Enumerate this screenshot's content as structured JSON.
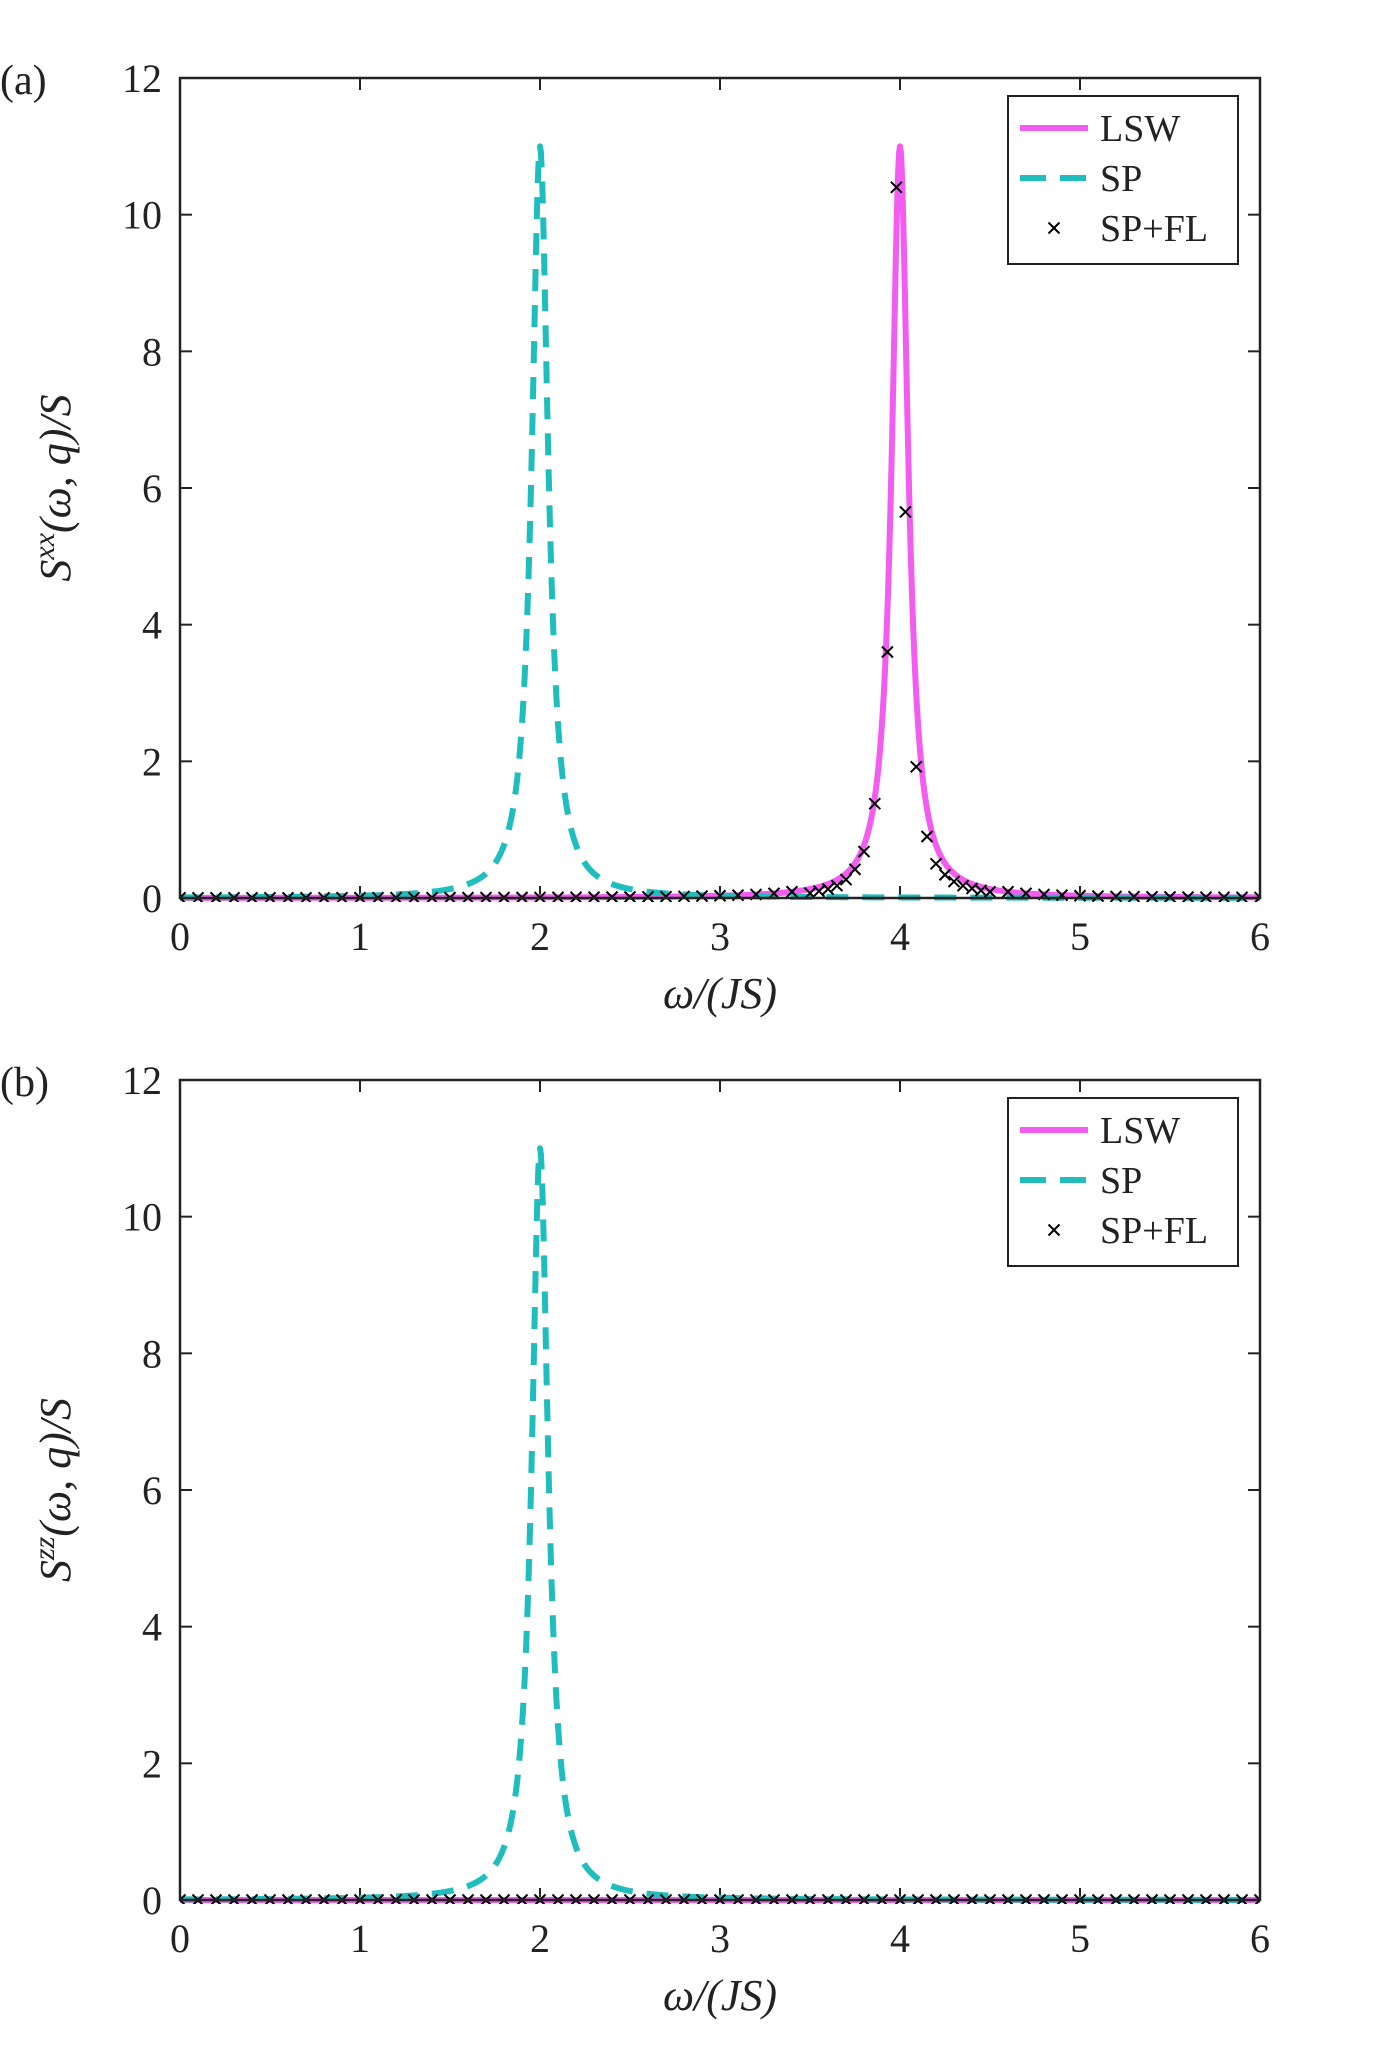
{
  "chart_data": [
    {
      "type": "line",
      "panel_label": "(a)",
      "xlabel": "ω/(JS)",
      "ylabel": "S^xx(ω, q)/S",
      "ylabel_main": "S",
      "ylabel_sup": "xx",
      "ylabel_rest": "(ω, q)/S",
      "xlim": [
        0,
        6
      ],
      "ylim": [
        0,
        12
      ],
      "xticks": [
        0,
        1,
        2,
        3,
        4,
        5,
        6
      ],
      "yticks": [
        0,
        2,
        4,
        6,
        8,
        10,
        12
      ],
      "legend": {
        "position": "top-right",
        "entries": [
          "LSW",
          "SP",
          "SP+FL"
        ]
      },
      "series": [
        {
          "name": "LSW",
          "style": "solid",
          "color": "#f25cf0",
          "center": 4.0,
          "peak": 11.0,
          "gamma": 0.055
        },
        {
          "name": "SP",
          "style": "dashed",
          "color": "#1fbdbd",
          "center": 2.0,
          "peak": 11.0,
          "gamma": 0.055
        },
        {
          "name": "SP+FL",
          "style": "markers",
          "color": "#000000",
          "center": 4.0,
          "peak": 11.0,
          "gamma": 0.055,
          "x": [
            3.5,
            3.55,
            3.6,
            3.65,
            3.7,
            3.75,
            3.8,
            3.86,
            3.93,
            3.98,
            4.03,
            4.09,
            4.15,
            4.2,
            4.25,
            4.3,
            4.35,
            4.4,
            4.45,
            4.5
          ],
          "y": [
            0.07,
            0.1,
            0.13,
            0.18,
            0.27,
            0.42,
            0.68,
            1.38,
            3.6,
            10.4,
            5.65,
            1.92,
            0.9,
            0.5,
            0.34,
            0.24,
            0.18,
            0.14,
            0.11,
            0.09
          ]
        }
      ]
    },
    {
      "type": "line",
      "panel_label": "(b)",
      "xlabel": "ω/(JS)",
      "ylabel": "S^zz(ω, q)/S",
      "ylabel_main": "S",
      "ylabel_sup": "zz",
      "ylabel_rest": "(ω, q)/S",
      "xlim": [
        0,
        6
      ],
      "ylim": [
        0,
        12
      ],
      "xticks": [
        0,
        1,
        2,
        3,
        4,
        5,
        6
      ],
      "yticks": [
        0,
        2,
        4,
        6,
        8,
        10,
        12
      ],
      "legend": {
        "position": "top-right",
        "entries": [
          "LSW",
          "SP",
          "SP+FL"
        ]
      },
      "series": [
        {
          "name": "LSW",
          "style": "solid",
          "color": "#f25cf0",
          "flat": true
        },
        {
          "name": "SP",
          "style": "dashed",
          "color": "#1fbdbd",
          "center": 2.0,
          "peak": 11.0,
          "gamma": 0.055
        },
        {
          "name": "SP+FL",
          "style": "markers",
          "color": "#000000",
          "flat": true
        }
      ]
    }
  ]
}
